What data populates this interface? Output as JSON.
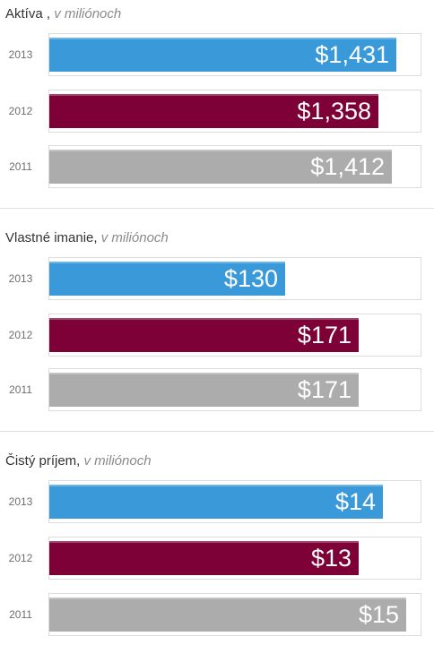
{
  "colors": {
    "2013": "#3a9ad9",
    "2012": "#7d0036",
    "2011": "#acacac"
  },
  "chart_data": [
    {
      "type": "bar",
      "title": "Aktíva ,",
      "unit": "v miliónoch",
      "categories": [
        "2013",
        "2012",
        "2011"
      ],
      "values": [
        1431,
        1358,
        1412
      ],
      "labels": [
        "$1,431",
        "$1,358",
        "$1,412"
      ],
      "xlim": [
        0,
        1530
      ]
    },
    {
      "type": "bar",
      "title": "Vlastné imanie,",
      "unit": "v miliónoch",
      "categories": [
        "2013",
        "2012",
        "2011"
      ],
      "values": [
        130,
        171,
        171
      ],
      "labels": [
        "$130",
        "$171",
        "$171"
      ],
      "xlim": [
        0,
        205
      ]
    },
    {
      "type": "bar",
      "title": "Čistý príjem,",
      "unit": "v miliónoch",
      "categories": [
        "2013",
        "2012",
        "2011"
      ],
      "values": [
        14,
        13,
        15
      ],
      "labels": [
        "$14",
        "$13",
        "$15"
      ],
      "xlim": [
        0,
        15.6
      ]
    }
  ]
}
